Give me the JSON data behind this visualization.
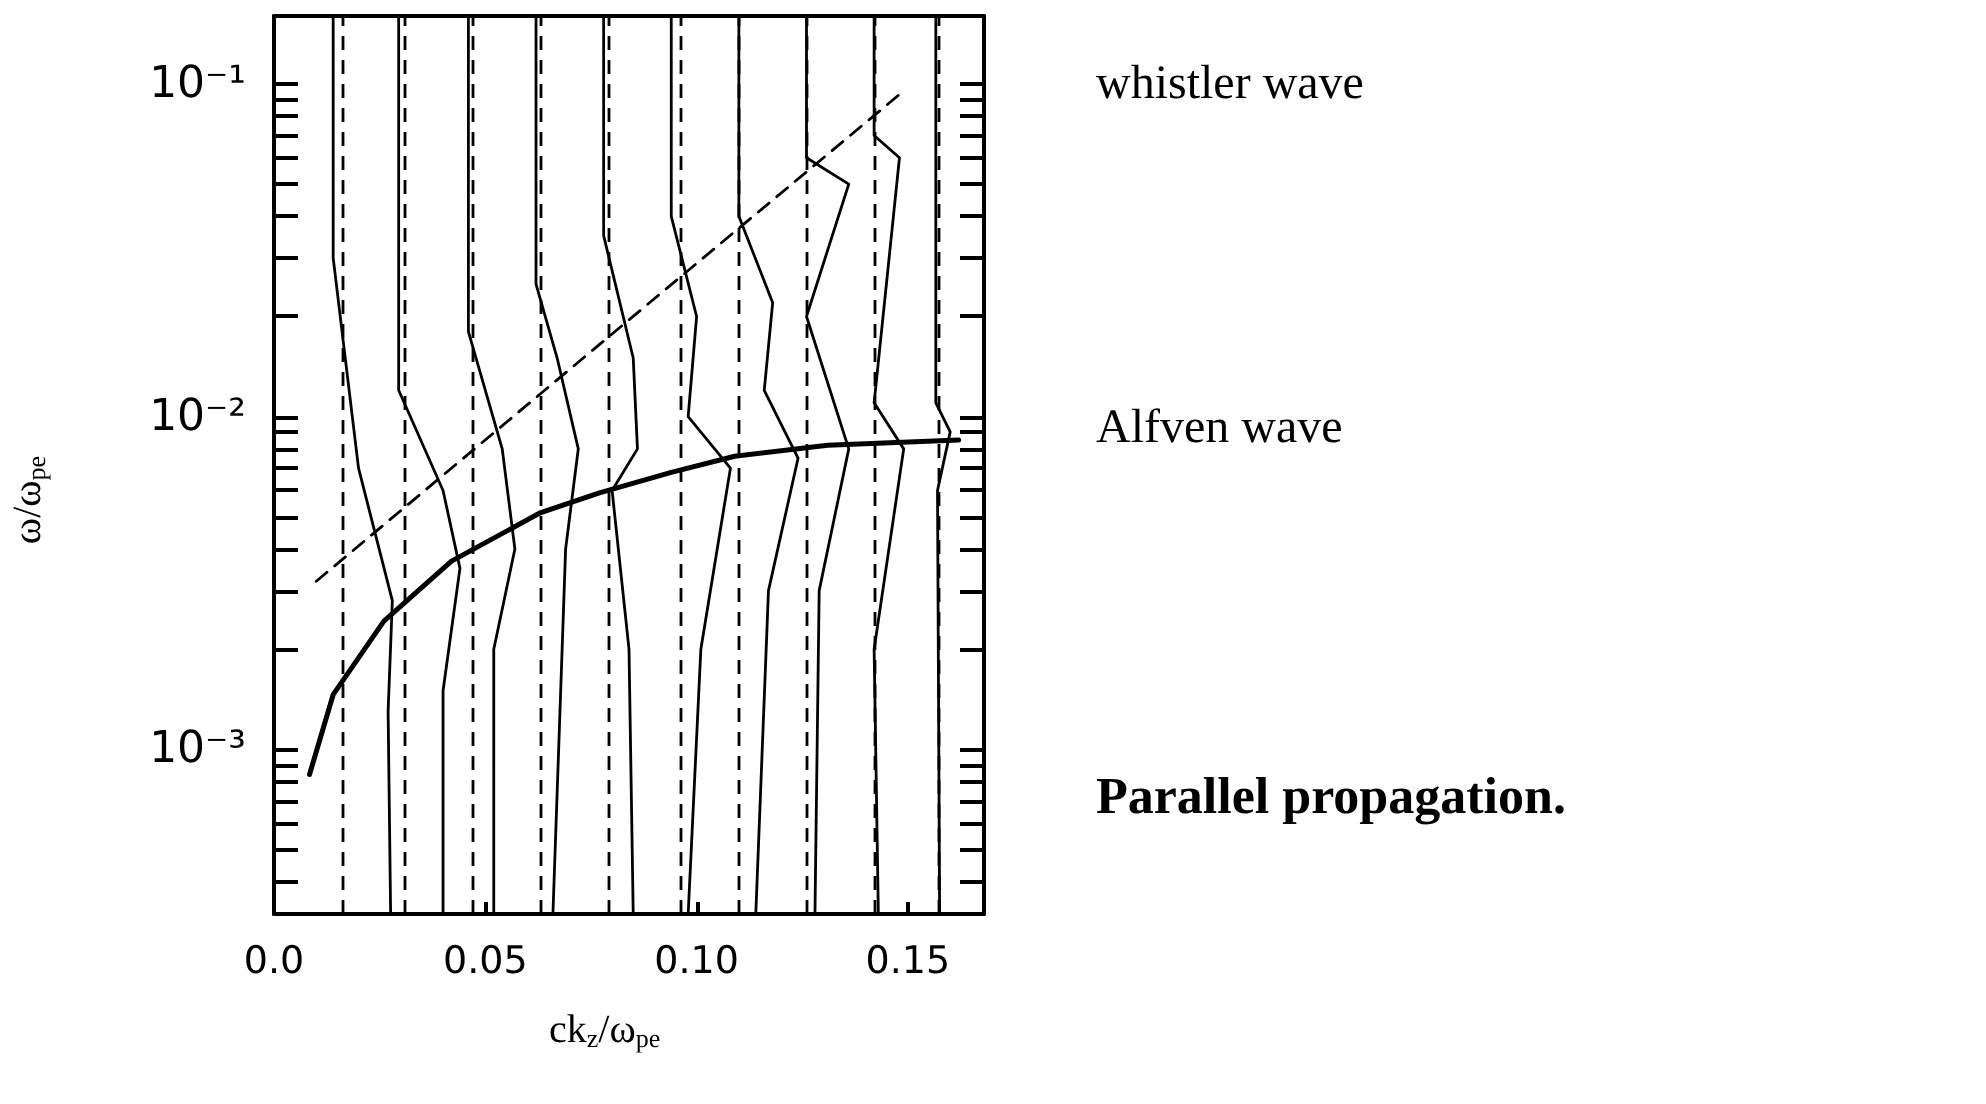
{
  "chart_data": {
    "type": "line",
    "xlabel": "ck$_{z}$/ω$_{pe}$",
    "ylabel": "ω/ω$_{pe}$",
    "annotations": [
      "whistler wave",
      "Alfven wave",
      "Parallel propagation."
    ],
    "log": "y",
    "grid": false,
    "legend": false,
    "marker": "none",
    "line_style": "solid",
    "xlim": [
      0,
      0.168
    ],
    "ylim": [
      0.00032,
      0.16
    ],
    "xticks": [
      {
        "value": 0,
        "label": "0.0"
      },
      0.05,
      {
        "value": 0.1,
        "label": "0.10"
      },
      0.15
    ],
    "yticks": [
      {
        "value": 0.0004,
        "label": null
      },
      {
        "value": 0.0005,
        "label": null
      },
      {
        "value": 0.0006,
        "label": null
      },
      {
        "value": 0.0007,
        "label": null
      },
      {
        "value": 0.0008,
        "label": null
      },
      {
        "value": 0.0009,
        "label": null
      },
      {
        "value": 0.001,
        "label": "10⁻³"
      },
      {
        "value": 0.002,
        "label": null
      },
      {
        "value": 0.003,
        "label": null
      },
      {
        "value": 0.004,
        "label": null
      },
      {
        "value": 0.005,
        "label": null
      },
      {
        "value": 0.006,
        "label": null
      },
      {
        "value": 0.007,
        "label": null
      },
      {
        "value": 0.008,
        "label": null
      },
      {
        "value": 0.009,
        "label": null
      },
      {
        "value": 0.01,
        "label": "10⁻²"
      },
      {
        "value": 0.02,
        "label": null
      },
      {
        "value": 0.03,
        "label": null
      },
      {
        "value": 0.04,
        "label": null
      },
      {
        "value": 0.05,
        "label": null
      },
      {
        "value": 0.06,
        "label": null
      },
      {
        "value": 0.07,
        "label": null
      },
      {
        "value": 0.08,
        "label": null
      },
      {
        "value": 0.09,
        "label": null
      },
      {
        "value": 0.1,
        "label": "10⁻¹"
      }
    ],
    "ref_lines": [
      {
        "axis": "x",
        "value": 0.016,
        "line_style": "dashed",
        "color": "#000000"
      },
      {
        "axis": "x",
        "value": 0.031,
        "line_style": "dashed",
        "color": "#000000"
      },
      {
        "axis": "x",
        "value": 0.047,
        "line_style": "dashed",
        "color": "#000000"
      },
      {
        "axis": "x",
        "value": 0.063,
        "line_style": "dashed",
        "color": "#000000"
      },
      {
        "axis": "x",
        "value": 0.079,
        "line_style": "dashed",
        "color": "#000000"
      },
      {
        "axis": "x",
        "value": 0.096,
        "line_style": "dashed",
        "color": "#000000"
      },
      {
        "axis": "x",
        "value": 0.11,
        "line_style": "dashed",
        "color": "#000000"
      },
      {
        "axis": "x",
        "value": 0.126,
        "line_style": "dashed",
        "color": "#000000"
      },
      {
        "axis": "x",
        "value": 0.142,
        "line_style": "dashed",
        "color": "#000000"
      },
      {
        "axis": "x",
        "value": 0.157,
        "line_style": "dashed",
        "color": "#000000"
      }
    ],
    "series": [
      {
        "color": "#000000",
        "line_style": "dashed",
        "x": [
          0.01,
          0.079,
          0.148
        ],
        "values": [
          0.0032,
          0.0173,
          0.093
        ]
      },
      {
        "color": "#000000",
        "line_style": "solid",
        "x": [
          0.0084,
          0.014,
          0.026,
          0.042,
          0.063,
          0.077,
          0.094,
          0.109,
          0.131,
          0.162
        ],
        "values": [
          0.00084,
          0.00146,
          0.00243,
          0.00368,
          0.00514,
          0.0059,
          0.0068,
          0.0076,
          0.0082,
          0.0085
        ]
      },
      {
        "color": "#000000",
        "x": [
          0.014,
          0.014,
          0.02,
          0.028,
          0.027,
          0.0276
        ],
        "values": [
          0.16,
          0.03,
          0.007,
          0.0028,
          0.0013,
          0.00032
        ]
      },
      {
        "color": "#000000",
        "x": [
          0.0295,
          0.0295,
          0.04,
          0.044,
          0.04,
          0.04
        ],
        "values": [
          0.16,
          0.012,
          0.006,
          0.0035,
          0.0015,
          0.00032
        ]
      },
      {
        "color": "#000000",
        "x": [
          0.046,
          0.046,
          0.054,
          0.057,
          0.052,
          0.052
        ],
        "values": [
          0.16,
          0.018,
          0.008,
          0.004,
          0.002,
          0.00032
        ]
      },
      {
        "color": "#000000",
        "x": [
          0.062,
          0.062,
          0.067,
          0.072,
          0.069,
          0.066
        ],
        "values": [
          0.16,
          0.025,
          0.015,
          0.008,
          0.004,
          0.00032
        ]
      },
      {
        "color": "#000000",
        "x": [
          0.078,
          0.078,
          0.085,
          0.086,
          0.08,
          0.084,
          0.085
        ],
        "values": [
          0.16,
          0.035,
          0.015,
          0.008,
          0.006,
          0.002,
          0.00032
        ]
      },
      {
        "color": "#000000",
        "x": [
          0.094,
          0.094,
          0.1,
          0.098,
          0.108,
          0.101,
          0.098
        ],
        "values": [
          0.16,
          0.04,
          0.02,
          0.01,
          0.007,
          0.002,
          0.00032
        ]
      },
      {
        "color": "#000000",
        "x": [
          0.11,
          0.11,
          0.118,
          0.116,
          0.124,
          0.117,
          0.114
        ],
        "values": [
          0.16,
          0.04,
          0.022,
          0.012,
          0.0075,
          0.003,
          0.00032
        ]
      },
      {
        "color": "#000000",
        "x": [
          0.126,
          0.126,
          0.136,
          0.126,
          0.136,
          0.129,
          0.128
        ],
        "values": [
          0.16,
          0.06,
          0.05,
          0.02,
          0.008,
          0.003,
          0.00032
        ]
      },
      {
        "color": "#000000",
        "x": [
          0.142,
          0.142,
          0.148,
          0.142,
          0.149,
          0.142,
          0.143
        ],
        "values": [
          0.16,
          0.07,
          0.06,
          0.011,
          0.008,
          0.002,
          0.00032
        ]
      },
      {
        "color": "#000000",
        "x": [
          0.1566,
          0.1566,
          0.1566,
          0.16,
          0.157,
          0.1575
        ],
        "values": [
          0.16,
          0.09,
          0.011,
          0.009,
          0.006,
          0.00032
        ]
      }
    ]
  }
}
